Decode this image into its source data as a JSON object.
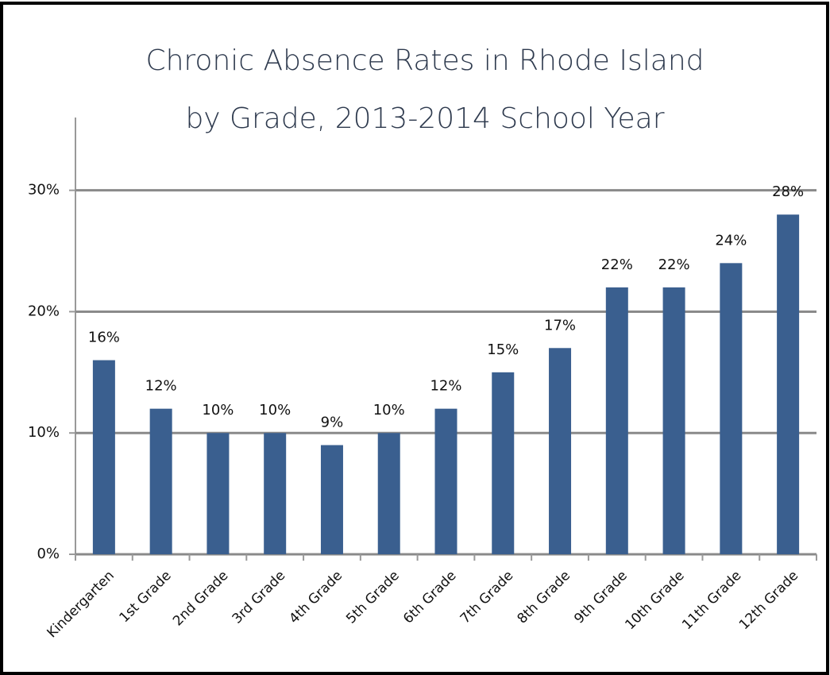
{
  "chart_data": {
    "type": "bar",
    "title": [
      "Chronic Absence Rates in Rhode Island",
      "by Grade, 2013-2014 School Year"
    ],
    "categories": [
      "Kindergarten",
      "1st Grade",
      "2nd Grade",
      "3rd Grade",
      "4th Grade",
      "5th Grade",
      "6th Grade",
      "7th Grade",
      "8th Grade",
      "9th Grade",
      "10th Grade",
      "11th Grade",
      "12th Grade"
    ],
    "values": [
      16,
      12,
      10,
      10,
      9,
      10,
      12,
      15,
      17,
      22,
      22,
      24,
      28
    ],
    "value_labels": [
      "16%",
      "12%",
      "10%",
      "10%",
      "9%",
      "10%",
      "12%",
      "15%",
      "17%",
      "22%",
      "22%",
      "24%",
      "28%"
    ],
    "color": "#3a5f8f",
    "ylim": [
      0,
      36
    ],
    "yticks": [
      {
        "value": 0,
        "label": "0%"
      },
      {
        "value": 10,
        "label": "10%"
      },
      {
        "value": 20,
        "label": "20%"
      },
      {
        "value": 30,
        "label": "30%"
      }
    ],
    "grid": true
  }
}
